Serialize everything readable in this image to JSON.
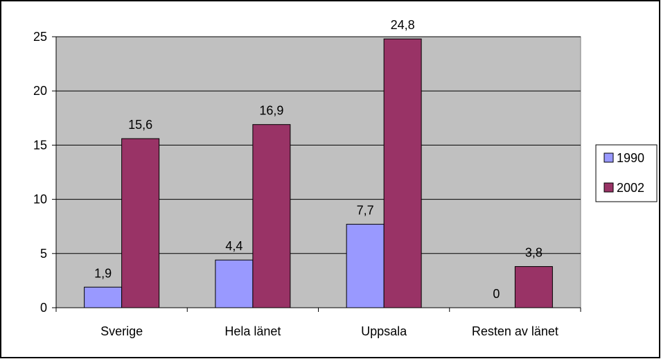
{
  "chart_data": {
    "type": "bar",
    "categories": [
      "Sverige",
      "Hela länet",
      "Uppsala",
      "Resten av länet"
    ],
    "series": [
      {
        "name": "1990",
        "values": [
          1.9,
          4.4,
          7.7,
          0
        ]
      },
      {
        "name": "2002",
        "values": [
          15.6,
          16.9,
          24.8,
          3.8
        ]
      }
    ],
    "data_labels": [
      [
        "1,9",
        "4,4",
        "7,7",
        "0"
      ],
      [
        "15,6",
        "16,9",
        "24,8",
        "3,8"
      ]
    ],
    "y_ticks": [
      "0",
      "5",
      "10",
      "15",
      "20",
      "25"
    ],
    "ylim": [
      0,
      25
    ],
    "grid": true,
    "legend_position": "right",
    "colors": {
      "plot_background": "#c0c0c0",
      "series": [
        "#9999ff",
        "#993366"
      ],
      "gridline": "#000000"
    }
  }
}
